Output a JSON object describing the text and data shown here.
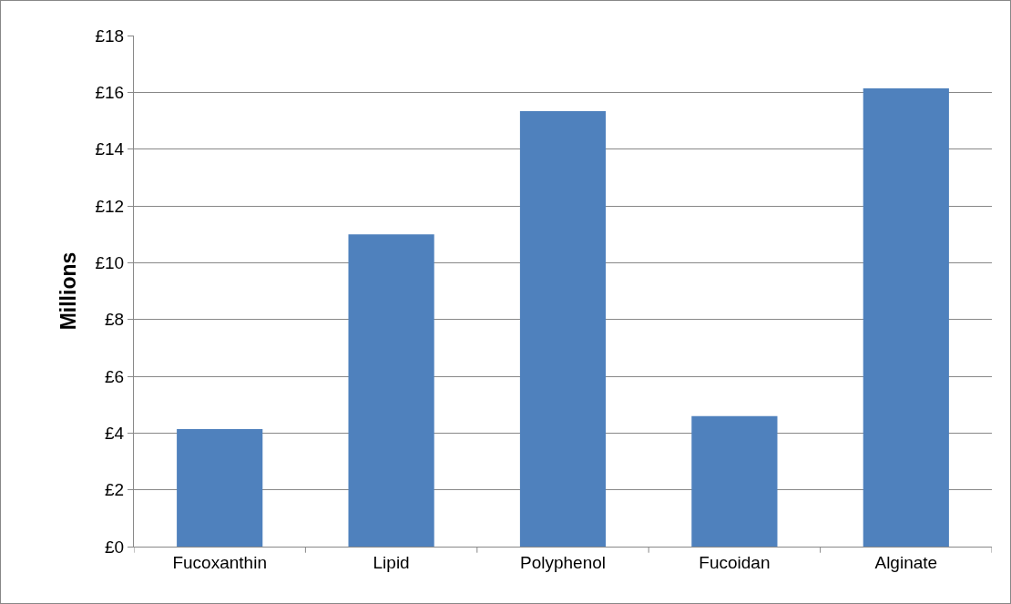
{
  "chart_data": {
    "type": "bar",
    "ylabel": "Millions",
    "categories": [
      "Fucoxanthin",
      "Lipid",
      "Polyphenol",
      "Fucoidan",
      "Alginate"
    ],
    "values": [
      4.14,
      11.0,
      15.34,
      4.6,
      16.14
    ],
    "color": "#4f81bd",
    "ylim": [
      0,
      18
    ],
    "yticks": [
      {
        "value": 0,
        "label": "£0"
      },
      {
        "value": 2,
        "label": "£2"
      },
      {
        "value": 4,
        "label": "£4"
      },
      {
        "value": 6,
        "label": "£6"
      },
      {
        "value": 8,
        "label": "£8"
      },
      {
        "value": 10,
        "label": "£10"
      },
      {
        "value": 12,
        "label": "£12"
      },
      {
        "value": 14,
        "label": "£14"
      },
      {
        "value": 16,
        "label": "£16"
      },
      {
        "value": 18,
        "label": "£18"
      }
    ],
    "grid": "y"
  }
}
